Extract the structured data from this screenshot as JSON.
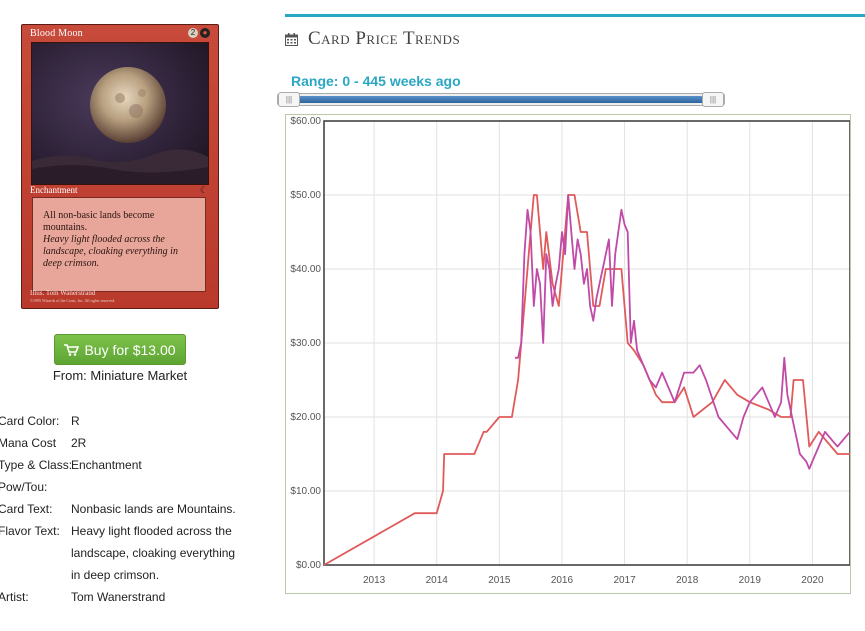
{
  "card": {
    "name": "Blood Moon",
    "cost_generic": "2",
    "cost_red": "●",
    "type_line": "Enchantment",
    "set_symbol": "☾",
    "rules_text": "All non-basic lands become mountains.",
    "flavor_text": "Heavy light flooded across the landscape, cloaking everything in deep crimson.",
    "artist_line": "Illus. Tom Wanerstrand",
    "copyright_line": "©1995 Wizards of the Coast, Inc. All rights reserved."
  },
  "buy": {
    "label": "Buy for $13.00",
    "from": "From: Miniature Market",
    "icon": "cart-icon"
  },
  "info": {
    "rows": [
      {
        "label": "Card Color:",
        "value": "R"
      },
      {
        "label": "Mana Cost",
        "value": "2R"
      },
      {
        "label": "Type & Class:",
        "value": "Enchantment"
      },
      {
        "label": "Pow/Tou:",
        "value": ""
      },
      {
        "label": "Card Text:",
        "value": "Nonbasic lands are Mountains."
      },
      {
        "label": "Flavor Text:",
        "value": "Heavy light flooded across the landscape, cloaking everything in deep crimson."
      },
      {
        "label": "Artist:",
        "value": "Tom Wanerstrand"
      }
    ]
  },
  "section": {
    "title": "Card Price Trends",
    "icon": "calendar-icon"
  },
  "range": {
    "label": "Range: 0 - 445 weeks ago",
    "min_weeks": 0,
    "max_weeks": 445,
    "handle_glyph": "|||"
  },
  "colors": {
    "accent": "#2aa7c3",
    "buy_green": "#6cb33f",
    "series_a": "#e05a5a",
    "series_b": "#c04aa8"
  },
  "chart_data": {
    "type": "line",
    "ylim": [
      0,
      60
    ],
    "xlim": [
      2012.2,
      2020.6
    ],
    "y_ticks": [
      "$0.00",
      "$10.00",
      "$20.00",
      "$30.00",
      "$40.00",
      "$50.00",
      "$60.00"
    ],
    "y_tick_values": [
      0,
      10,
      20,
      30,
      40,
      50,
      60
    ],
    "x_ticks": [
      "2013",
      "2014",
      "2015",
      "2016",
      "2017",
      "2018",
      "2019",
      "2020"
    ],
    "x_tick_values": [
      2013,
      2014,
      2015,
      2016,
      2017,
      2018,
      2019,
      2020
    ],
    "grid": true,
    "series": [
      {
        "color": "#e05a5a",
        "x": [
          2012.2,
          2013.65,
          2014.0,
          2014.1,
          2014.12,
          2014.6,
          2014.75,
          2014.8,
          2015.0,
          2015.2,
          2015.3,
          2015.4,
          2015.5,
          2015.55,
          2015.6,
          2015.7,
          2015.75,
          2015.85,
          2015.95,
          2016.1,
          2016.2,
          2016.3,
          2016.4,
          2016.5,
          2016.6,
          2016.7,
          2016.8,
          2016.95,
          2017.05,
          2017.15,
          2017.3,
          2017.45,
          2017.5,
          2017.6,
          2017.8,
          2017.95,
          2018.1,
          2018.4,
          2018.6,
          2018.8,
          2019.0,
          2019.3,
          2019.5,
          2019.65,
          2019.7,
          2019.85,
          2019.95,
          2020.1,
          2020.4,
          2020.6
        ],
        "y": [
          0,
          7,
          7,
          10,
          15,
          15,
          18,
          18,
          20,
          20,
          25,
          35,
          45,
          50,
          50,
          40,
          45,
          38,
          35,
          50,
          50,
          45,
          45,
          35,
          35,
          40,
          40,
          40,
          30,
          29,
          27,
          24,
          23,
          22,
          22,
          24,
          20,
          22,
          25,
          23,
          22,
          21,
          20,
          20,
          25,
          25,
          16,
          18,
          15,
          15
        ]
      },
      {
        "color": "#c04aa8",
        "x": [
          2015.25,
          2015.3,
          2015.35,
          2015.4,
          2015.45,
          2015.5,
          2015.55,
          2015.6,
          2015.65,
          2015.7,
          2015.75,
          2015.8,
          2015.85,
          2015.9,
          2015.95,
          2016.0,
          2016.05,
          2016.1,
          2016.15,
          2016.2,
          2016.25,
          2016.3,
          2016.35,
          2016.4,
          2016.45,
          2016.5,
          2016.55,
          2016.6,
          2016.65,
          2016.7,
          2016.75,
          2016.8,
          2016.85,
          2016.9,
          2016.95,
          2017.0,
          2017.05,
          2017.1,
          2017.15,
          2017.2,
          2017.3,
          2017.4,
          2017.5,
          2017.6,
          2017.7,
          2017.8,
          2017.95,
          2018.1,
          2018.2,
          2018.3,
          2018.5,
          2018.7,
          2018.8,
          2018.9,
          2019.0,
          2019.1,
          2019.2,
          2019.3,
          2019.4,
          2019.5,
          2019.55,
          2019.6,
          2019.7,
          2019.75,
          2019.8,
          2019.9,
          2019.95,
          2020.0,
          2020.1,
          2020.2,
          2020.3,
          2020.4,
          2020.5,
          2020.6
        ],
        "y": [
          28,
          28,
          30,
          42,
          48,
          45,
          35,
          40,
          38,
          30,
          42,
          40,
          35,
          38,
          40,
          45,
          42,
          50,
          45,
          40,
          44,
          42,
          38,
          40,
          35,
          33,
          36,
          38,
          40,
          42,
          44,
          35,
          42,
          45,
          48,
          46,
          45,
          30,
          33,
          29,
          27,
          25,
          24,
          26,
          24,
          22,
          26,
          26,
          27,
          25,
          20,
          18,
          17,
          20,
          22,
          23,
          24,
          22,
          20,
          22,
          28,
          23,
          19,
          17,
          15,
          14,
          13,
          14,
          16,
          18,
          17,
          16,
          17,
          18
        ]
      }
    ]
  }
}
